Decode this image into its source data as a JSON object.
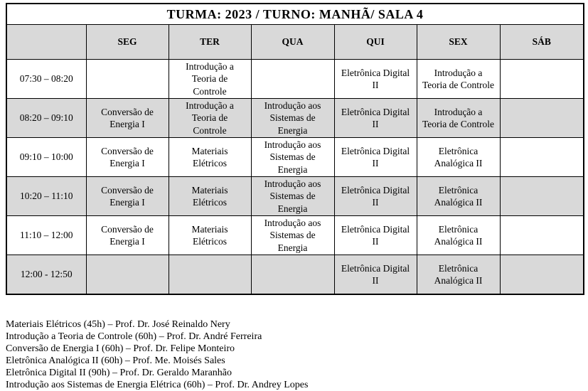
{
  "title": "TURMA: 2023 / TURNO: MANHÃ/ SALA 4",
  "table": {
    "headers": [
      "",
      "SEG",
      "TER",
      "QUA",
      "QUI",
      "SEX",
      "SÁB"
    ],
    "rows": [
      {
        "time": "07:30 – 08:20",
        "cells": [
          "",
          "Introdução a Teoria de Controle",
          "",
          "Eletrônica Digital II",
          "Introdução a Teoria de Controle",
          ""
        ]
      },
      {
        "time": "08:20 – 09:10",
        "cells": [
          "Conversão de Energia I",
          "Introdução a Teoria de Controle",
          "Introdução aos Sistemas de Energia",
          "Eletrônica Digital II",
          "Introdução a Teoria de Controle",
          ""
        ]
      },
      {
        "time": "09:10 – 10:00",
        "cells": [
          "Conversão de Energia I",
          "Materiais Elétricos",
          "Introdução aos Sistemas de Energia",
          "Eletrônica Digital II",
          "Eletrônica Analógica II",
          ""
        ]
      },
      {
        "time": "10:20 – 11:10",
        "cells": [
          "Conversão de Energia I",
          "Materiais Elétricos",
          "Introdução aos Sistemas de Energia",
          "Eletrônica Digital II",
          "Eletrônica Analógica II",
          ""
        ]
      },
      {
        "time": "11:10 – 12:00",
        "cells": [
          "Conversão de Energia I",
          "Materiais Elétricos",
          "Introdução aos Sistemas de Energia",
          "Eletrônica Digital II",
          "Eletrônica Analógica II",
          ""
        ]
      },
      {
        "time": "12:00 - 12:50",
        "cells": [
          "",
          "",
          "",
          "Eletrônica Digital II",
          "Eletrônica Analógica II",
          ""
        ]
      }
    ]
  },
  "legend": {
    "lines": [
      "Materiais Elétricos (45h) – Prof. Dr. José Reinaldo Nery",
      "Introdução a Teoria de Controle (60h) – Prof. Dr. André Ferreira",
      "Conversão de Energia I (60h) – Prof. Dr. Felipe Monteiro",
      "Eletrônica Analógica II (60h) – Prof. Me. Moisés Sales",
      "Eletrônica Digital II (90h) – Prof. Dr. Geraldo Maranhão",
      "Introdução aos Sistemas de Energia Elétrica (60h) – Prof. Dr. Andrey Lopes"
    ]
  },
  "colors": {
    "shaded_row": "#d9d9d9",
    "border": "#000000",
    "background": "#ffffff"
  }
}
